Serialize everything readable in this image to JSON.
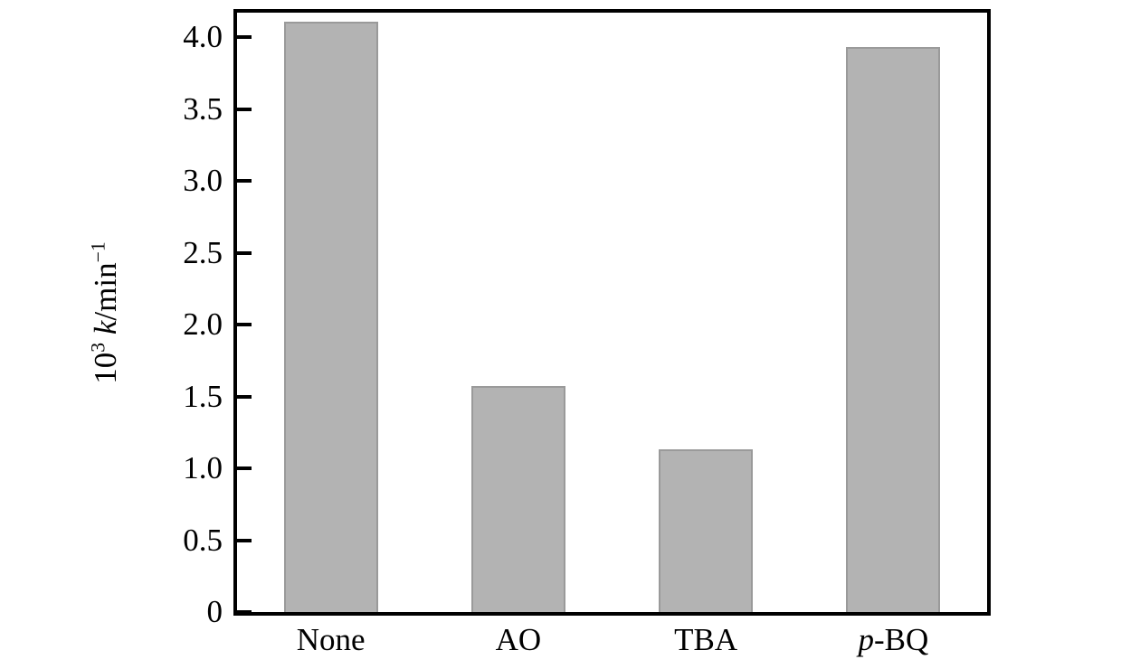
{
  "chart_data": {
    "type": "bar",
    "title": "",
    "xlabel": "",
    "ylabel": "10³ k/min⁻¹",
    "categories": [
      "None",
      "AO",
      "TBA",
      "p-BQ"
    ],
    "values": [
      4.11,
      1.57,
      1.13,
      3.93
    ],
    "ylim": [
      0,
      4.17
    ],
    "yticks": {
      "values": [
        0,
        0.5,
        1.0,
        1.5,
        2.0,
        2.5,
        3.0,
        3.5,
        4.0
      ],
      "labels": [
        "0",
        "0.5",
        "1.0",
        "1.5",
        "2.0",
        "2.5",
        "3.0",
        "3.5",
        "4.0"
      ]
    },
    "grid": false,
    "legend": null,
    "bar_color": "#b3b3b3",
    "bar_border_color": "#9a9a9a",
    "axis_color": "#000000",
    "text_color": "#000000",
    "background_color": "#ffffff",
    "category_rich": [
      [
        {
          "text": "None"
        }
      ],
      [
        {
          "text": "AO"
        }
      ],
      [
        {
          "text": "TBA"
        }
      ],
      [
        {
          "text": "p",
          "italic": true
        },
        {
          "text": "-BQ"
        }
      ]
    ],
    "ylabel_rich": [
      {
        "text": "10"
      },
      {
        "text": "3",
        "sup": true
      },
      {
        "text": " "
      },
      {
        "text": "k",
        "italic": true
      },
      {
        "text": "/min"
      },
      {
        "text": "−1",
        "sup": true
      }
    ]
  }
}
